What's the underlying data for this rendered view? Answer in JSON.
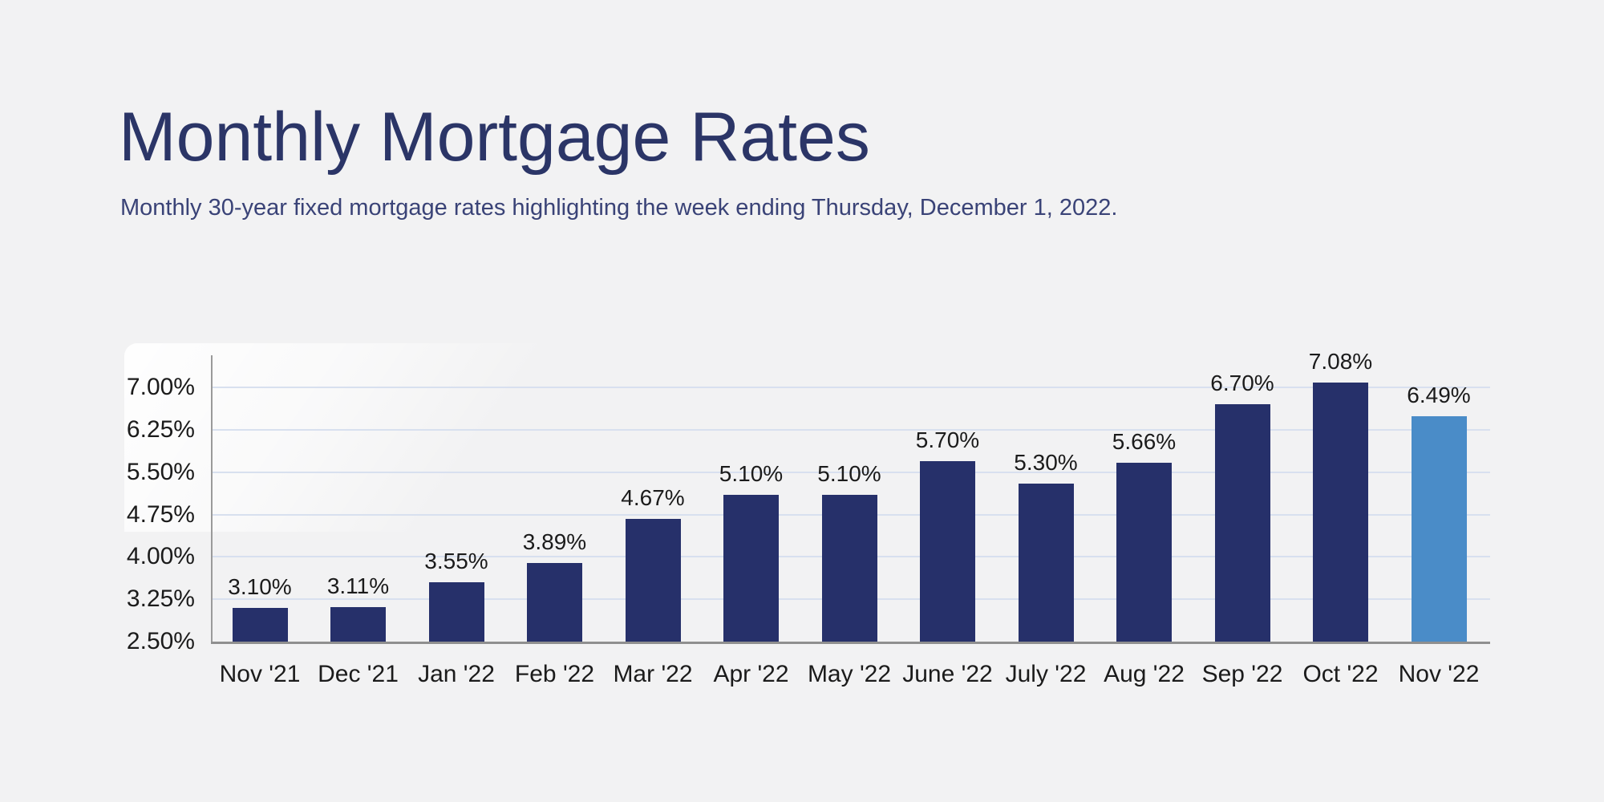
{
  "page": {
    "background_color": "#f2f2f3"
  },
  "header": {
    "title": "Monthly Mortgage Rates",
    "subtitle": "Monthly 30-year fixed mortgage rates highlighting the week ending Thursday, December 1, 2022."
  },
  "colors": {
    "title_text": "#2b3567",
    "subtitle_text": "#3a4377",
    "bar_navy": "#26306a",
    "bar_highlight_blue": "#4a8cc8",
    "gridline": "#d8e0ef",
    "axis_line": "#8f8f8f",
    "label_text": "#1b1b1b"
  },
  "chart_data": {
    "type": "bar",
    "title": "Monthly Mortgage Rates",
    "subtitle": "Monthly 30-year fixed mortgage rates highlighting the week ending Thursday, December 1, 2022.",
    "xlabel": "",
    "ylabel": "",
    "categories": [
      "Nov '21",
      "Dec '21",
      "Jan '22",
      "Feb '22",
      "Mar '22",
      "Apr '22",
      "May '22",
      "June '22",
      "July '22",
      "Aug '22",
      "Sep '22",
      "Oct '22",
      "Nov '22"
    ],
    "values": [
      3.1,
      3.11,
      3.55,
      3.89,
      4.67,
      5.1,
      5.1,
      5.7,
      5.3,
      5.66,
      6.7,
      7.08,
      6.49
    ],
    "value_labels": [
      "3.10%",
      "3.11%",
      "3.55%",
      "3.89%",
      "4.67%",
      "5.10%",
      "5.10%",
      "5.70%",
      "5.30%",
      "5.66%",
      "6.70%",
      "7.08%",
      "6.49%"
    ],
    "highlight_index": 12,
    "y_ticks": [
      {
        "value": 7.0,
        "label": "7.00%"
      },
      {
        "value": 6.25,
        "label": "6.25%"
      },
      {
        "value": 5.5,
        "label": "5.50%"
      },
      {
        "value": 4.75,
        "label": "4.75%"
      },
      {
        "value": 4.0,
        "label": "4.00%"
      },
      {
        "value": 3.25,
        "label": "3.25%"
      },
      {
        "value": 2.5,
        "label": "2.50%"
      }
    ],
    "ylim": [
      2.5,
      7.0
    ],
    "grid": true,
    "legend": false,
    "bar_color": "#26306a",
    "highlight_bar_color": "#4a8cc8"
  }
}
